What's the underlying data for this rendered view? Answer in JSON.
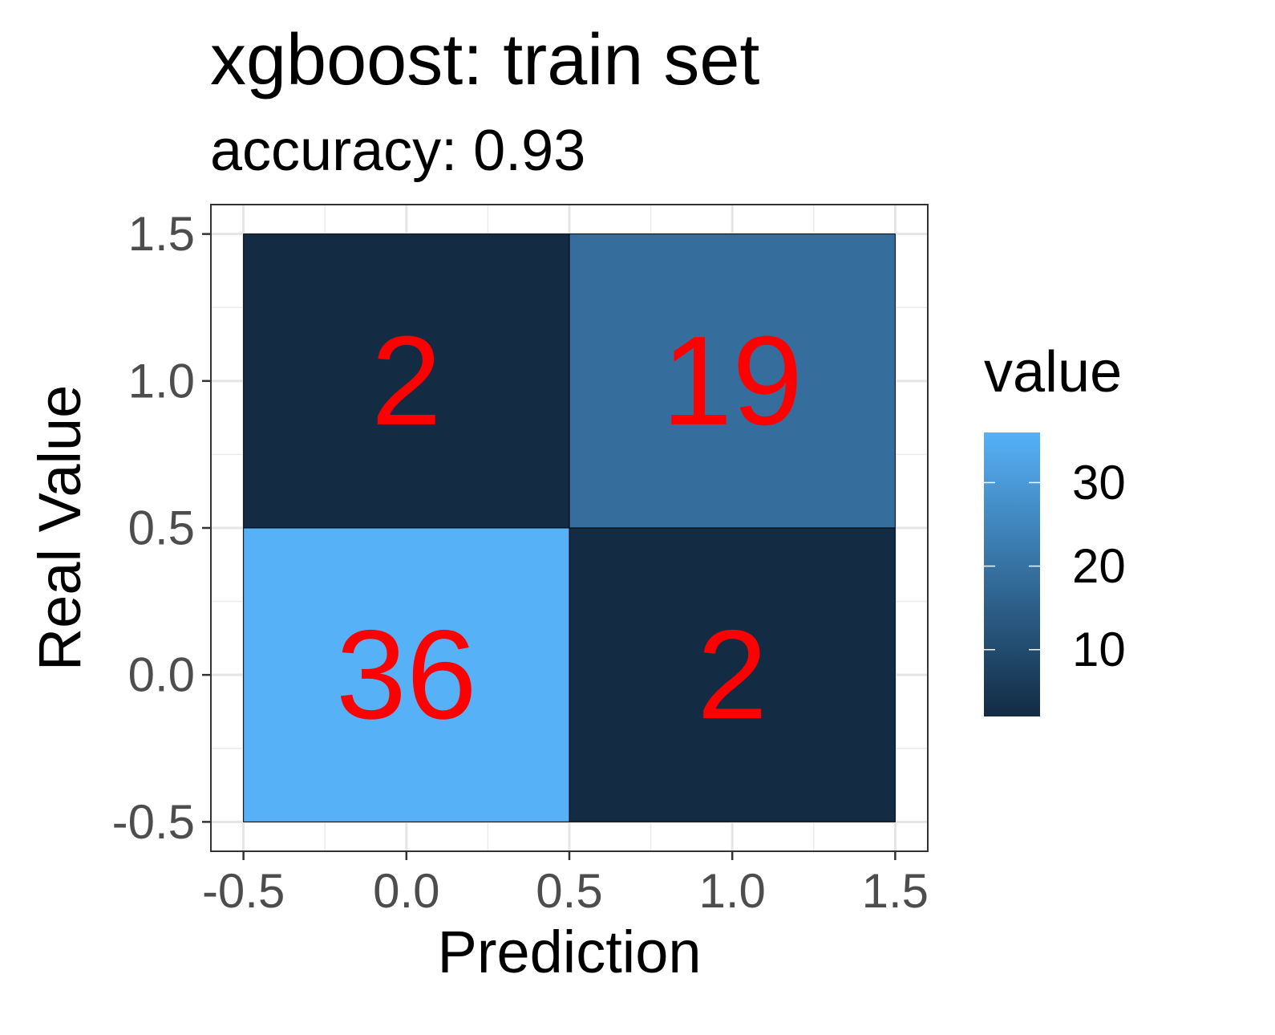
{
  "chart_data": {
    "type": "heatmap",
    "title": "xgboost: train set",
    "subtitle": "accuracy: 0.93",
    "xlabel": "Prediction",
    "ylabel": "Real Value",
    "xlim": [
      -0.6,
      1.6
    ],
    "ylim": [
      -0.6,
      1.6
    ],
    "xticks": [
      -0.5,
      0.0,
      0.5,
      1.0,
      1.5
    ],
    "yticks": [
      -0.5,
      0.0,
      0.5,
      1.0,
      1.5
    ],
    "xtick_labels": [
      "-0.5",
      "0.0",
      "0.5",
      "1.0",
      "1.5"
    ],
    "ytick_labels": [
      "-0.5",
      "0.0",
      "0.5",
      "1.0",
      "1.5"
    ],
    "grid": true,
    "cells": [
      {
        "x": 0,
        "y": 1,
        "value": 2
      },
      {
        "x": 1,
        "y": 1,
        "value": 19
      },
      {
        "x": 0,
        "y": 0,
        "value": 36
      },
      {
        "x": 1,
        "y": 0,
        "value": 2
      }
    ],
    "label_color": "#ff0000",
    "legend": {
      "title": "value",
      "position": "right",
      "ticks": [
        10,
        20,
        30
      ],
      "tick_labels": [
        "10",
        "20",
        "30"
      ],
      "range": [
        2,
        36
      ],
      "low_color": "#132b43",
      "high_color": "#56b1f7"
    }
  }
}
